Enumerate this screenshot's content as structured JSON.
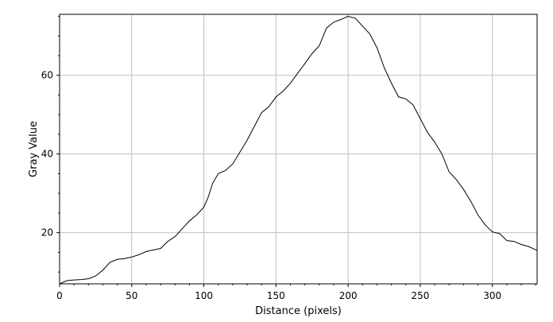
{
  "chart_data": {
    "type": "line",
    "title": "",
    "xlabel": "Distance (pixels)",
    "ylabel": "Gray Value",
    "xlim": [
      0,
      331
    ],
    "ylim": [
      7,
      75.5
    ],
    "grid": true,
    "x_ticks": [
      0,
      50,
      100,
      150,
      200,
      250,
      300
    ],
    "y_ticks": [
      20,
      40,
      60
    ],
    "colors": {
      "line": "#000000",
      "grid": "#c0c0c0",
      "frame": "#000000",
      "background": "#ffffff"
    },
    "series": [
      {
        "x": [
          0,
          5,
          10,
          15,
          20,
          25,
          30,
          35,
          40,
          45,
          50,
          55,
          60,
          65,
          70,
          75,
          80,
          85,
          90,
          95,
          100,
          103,
          106,
          110,
          115,
          120,
          125,
          130,
          135,
          140,
          145,
          150,
          155,
          160,
          165,
          170,
          175,
          180,
          185,
          190,
          195,
          200,
          205,
          210,
          215,
          220,
          225,
          230,
          235,
          240,
          245,
          250,
          255,
          260,
          265,
          270,
          275,
          280,
          285,
          290,
          295,
          300,
          305,
          310,
          315,
          320,
          325,
          331
        ],
        "y": [
          7.0,
          7.8,
          8.0,
          8.1,
          8.3,
          9.0,
          10.5,
          12.5,
          13.2,
          13.4,
          13.8,
          14.4,
          15.2,
          15.6,
          16.0,
          17.8,
          19.0,
          21.0,
          23.0,
          24.5,
          26.5,
          29.0,
          32.5,
          35.0,
          35.8,
          37.5,
          40.5,
          43.5,
          47.0,
          50.5,
          52.0,
          54.5,
          56.0,
          58.0,
          60.5,
          63.0,
          65.5,
          67.5,
          72.0,
          73.5,
          74.2,
          75.0,
          74.5,
          72.5,
          70.5,
          67.0,
          62.0,
          58.0,
          54.5,
          54.0,
          52.5,
          49.0,
          45.5,
          43.0,
          40.0,
          35.5,
          33.5,
          31.0,
          28.0,
          24.5,
          22.0,
          20.2,
          19.8,
          18.0,
          17.8,
          17.0,
          16.5,
          15.5
        ]
      }
    ]
  }
}
